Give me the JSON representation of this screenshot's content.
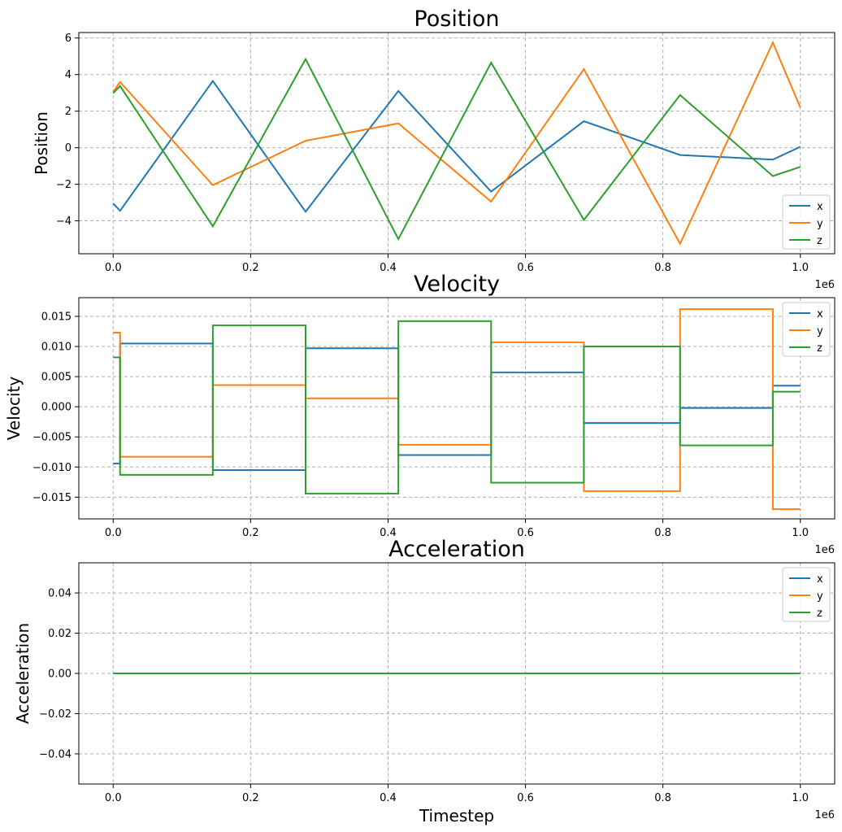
{
  "chart_data": [
    {
      "type": "line",
      "title": "Position",
      "ylabel": "Position",
      "xlabel": "",
      "x_offset_label": "1e6",
      "xlim": [
        -0.05,
        1.05
      ],
      "ylim": [
        -5.8,
        6.3
      ],
      "xticks": [
        0.0,
        0.2,
        0.4,
        0.6,
        0.8,
        1.0
      ],
      "xtick_labels": [
        "0.0",
        "0.2",
        "0.4",
        "0.6",
        "0.8",
        "1.0"
      ],
      "yticks": [
        -4,
        -2,
        0,
        2,
        4,
        6
      ],
      "ytick_labels": [
        "−4",
        "−2",
        "0",
        "2",
        "4",
        "6"
      ],
      "grid": true,
      "legend_position": "lower-right",
      "series": [
        {
          "name": "x",
          "color": "#1f77b4",
          "step": false,
          "x": [
            0.0,
            0.01,
            0.145,
            0.28,
            0.415,
            0.55,
            0.685,
            0.825,
            0.96,
            1.0
          ],
          "y": [
            -3.05,
            -3.45,
            3.65,
            -3.5,
            3.1,
            -2.4,
            1.45,
            -0.4,
            -0.65,
            0.05
          ]
        },
        {
          "name": "y",
          "color": "#ff7f0e",
          "step": false,
          "x": [
            0.0,
            0.01,
            0.145,
            0.28,
            0.415,
            0.55,
            0.685,
            0.825,
            0.96,
            1.0
          ],
          "y": [
            3.05,
            3.6,
            -2.05,
            0.38,
            1.33,
            -2.95,
            4.3,
            -5.25,
            5.75,
            2.2
          ]
        },
        {
          "name": "z",
          "color": "#2ca02c",
          "step": false,
          "x": [
            0.0,
            0.01,
            0.145,
            0.28,
            0.415,
            0.55,
            0.685,
            0.825,
            0.96,
            1.0
          ],
          "y": [
            2.98,
            3.38,
            -4.3,
            4.85,
            -5.0,
            4.65,
            -3.95,
            2.88,
            -1.55,
            -1.05
          ]
        }
      ]
    },
    {
      "type": "line",
      "title": "Velocity",
      "ylabel": "Velocity",
      "xlabel": "",
      "x_offset_label": "1e6",
      "xlim": [
        -0.05,
        1.05
      ],
      "ylim": [
        -0.0186,
        0.0181
      ],
      "xticks": [
        0.0,
        0.2,
        0.4,
        0.6,
        0.8,
        1.0
      ],
      "xtick_labels": [
        "0.0",
        "0.2",
        "0.4",
        "0.6",
        "0.8",
        "1.0"
      ],
      "yticks": [
        -0.015,
        -0.01,
        -0.005,
        0.0,
        0.005,
        0.01,
        0.015
      ],
      "ytick_labels": [
        "−0.015",
        "−0.010",
        "−0.005",
        "0.000",
        "0.005",
        "0.010",
        "0.015"
      ],
      "grid": true,
      "legend_position": "upper-right",
      "series": [
        {
          "name": "x",
          "color": "#1f77b4",
          "step": true,
          "x": [
            0.0,
            0.01,
            0.145,
            0.28,
            0.415,
            0.55,
            0.685,
            0.825,
            0.96,
            1.0
          ],
          "y": [
            -0.0094,
            0.0105,
            -0.0105,
            0.0097,
            -0.008,
            0.0057,
            -0.0027,
            -0.0002,
            0.0035,
            0.0035
          ]
        },
        {
          "name": "y",
          "color": "#ff7f0e",
          "step": true,
          "x": [
            0.0,
            0.01,
            0.145,
            0.28,
            0.415,
            0.55,
            0.685,
            0.825,
            0.96,
            1.0
          ],
          "y": [
            0.0123,
            -0.0083,
            0.0036,
            0.0014,
            -0.0063,
            0.0107,
            -0.014,
            0.0162,
            -0.017,
            -0.017
          ]
        },
        {
          "name": "z",
          "color": "#2ca02c",
          "step": true,
          "x": [
            0.0,
            0.01,
            0.145,
            0.28,
            0.415,
            0.55,
            0.685,
            0.825,
            0.96,
            1.0
          ],
          "y": [
            0.0082,
            -0.0113,
            0.0135,
            -0.0144,
            0.0142,
            -0.0126,
            0.01,
            -0.0064,
            0.0025,
            0.0025
          ]
        }
      ]
    },
    {
      "type": "line",
      "title": "Acceleration",
      "ylabel": "Acceleration",
      "xlabel": "Timestep",
      "x_offset_label": "1e6",
      "xlim": [
        -0.05,
        1.05
      ],
      "ylim": [
        -0.055,
        0.055
      ],
      "xticks": [
        0.0,
        0.2,
        0.4,
        0.6,
        0.8,
        1.0
      ],
      "xtick_labels": [
        "0.0",
        "0.2",
        "0.4",
        "0.6",
        "0.8",
        "1.0"
      ],
      "yticks": [
        -0.04,
        -0.02,
        0.0,
        0.02,
        0.04
      ],
      "ytick_labels": [
        "−0.04",
        "−0.02",
        "0.00",
        "0.02",
        "0.04"
      ],
      "grid": true,
      "legend_position": "upper-right",
      "series": [
        {
          "name": "x",
          "color": "#1f77b4",
          "step": false,
          "x": [
            0.0,
            1.0
          ],
          "y": [
            0.0,
            0.0
          ]
        },
        {
          "name": "y",
          "color": "#ff7f0e",
          "step": false,
          "x": [
            0.0,
            1.0
          ],
          "y": [
            0.0,
            0.0
          ]
        },
        {
          "name": "z",
          "color": "#2ca02c",
          "step": false,
          "x": [
            0.0,
            1.0
          ],
          "y": [
            0.0,
            0.0
          ]
        }
      ]
    }
  ]
}
